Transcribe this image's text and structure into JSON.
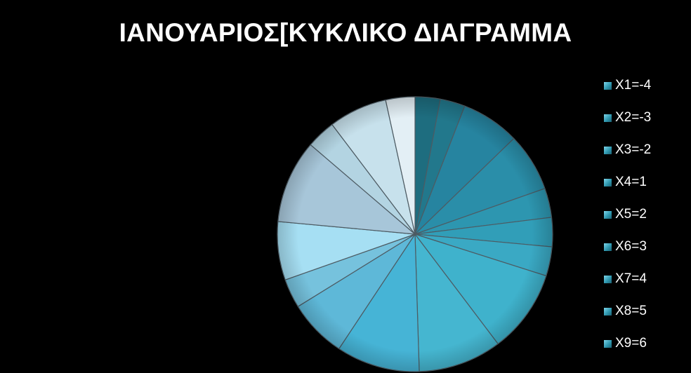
{
  "chart_data": {
    "type": "pie",
    "title": "ΙΑΝΟΥΑΡΙΟΣ[ΚΥΚΛΙΚΟ ΔΙΑΓΡΑΜΜΑ",
    "legend": {
      "position": "right",
      "entries": [
        "X1=-4",
        "X2=-3",
        "X3=-2",
        "X4=1",
        "X5=2",
        "X6=3",
        "X7=4",
        "X8=5",
        "X9=6"
      ],
      "swatch_color": "#2f98b0"
    },
    "values": [
      3,
      3,
      7,
      7,
      3.5,
      3.5,
      3.5,
      10,
      10,
      10,
      7,
      3.5,
      7,
      10,
      3.5,
      7,
      3.5
    ],
    "colors": [
      "#1e6d7f",
      "#22788c",
      "#2684a0",
      "#2a8ea9",
      "#2d96b0",
      "#319eb8",
      "#3aa9c4",
      "#3fb2cc",
      "#45b6d0",
      "#46b4d6",
      "#5eb8d8",
      "#76c2dd",
      "#a6dff3",
      "#a7c6d9",
      "#b3d4e2",
      "#c7e1ec",
      "#e3eff5"
    ]
  }
}
